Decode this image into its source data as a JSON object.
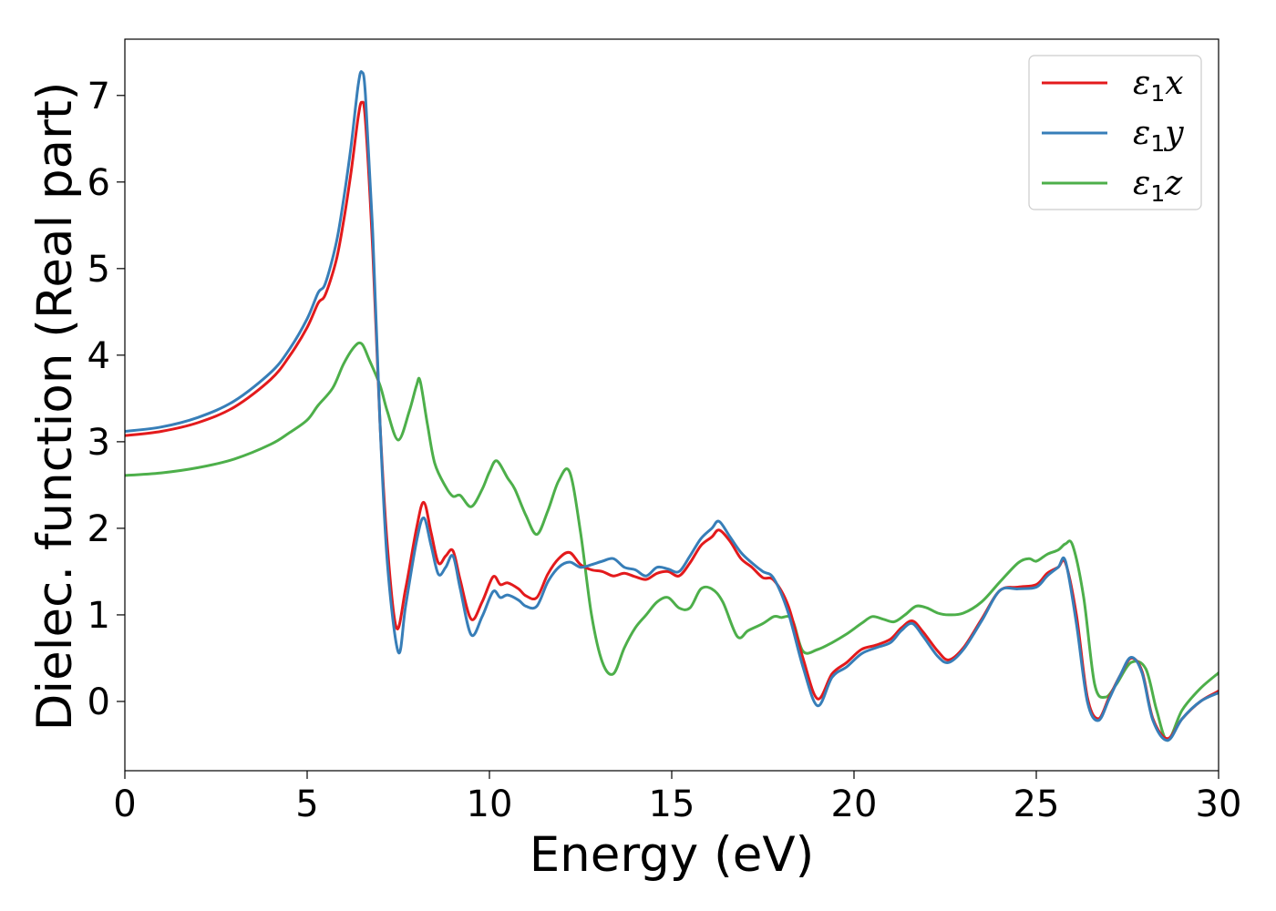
{
  "chart_data": {
    "type": "line",
    "title": "",
    "xlabel": "Energy (eV)",
    "ylabel": "Dielec. function (Real part)",
    "xlim": [
      0,
      30
    ],
    "ylim": [
      -0.8,
      7.65
    ],
    "xticks": [
      0,
      5,
      10,
      15,
      20,
      25,
      30
    ],
    "yticks": [
      0,
      1,
      2,
      3,
      4,
      5,
      6,
      7
    ],
    "xtick_labels": [
      "0",
      "5",
      "10",
      "15",
      "20",
      "25",
      "30"
    ],
    "ytick_labels": [
      "0",
      "1",
      "2",
      "3",
      "4",
      "5",
      "6",
      "7"
    ],
    "grid": false,
    "legend_position": "top-right",
    "series": [
      {
        "name": "ε1x",
        "legend_main": "ε",
        "legend_sub": "1",
        "legend_var": "x",
        "color": "#e31a1c",
        "x": [
          0,
          1,
          2,
          3,
          4,
          4.5,
          5,
          5.3,
          5.5,
          5.8,
          6.0,
          6.2,
          6.4,
          6.5,
          6.6,
          6.8,
          7.0,
          7.2,
          7.45,
          7.7,
          8.0,
          8.2,
          8.4,
          8.6,
          8.8,
          9.0,
          9.2,
          9.5,
          9.8,
          10.1,
          10.3,
          10.5,
          10.8,
          11.0,
          11.3,
          11.6,
          11.9,
          12.2,
          12.5,
          12.8,
          13.1,
          13.4,
          13.7,
          14.0,
          14.3,
          14.6,
          14.9,
          15.2,
          15.5,
          15.8,
          16.1,
          16.3,
          16.6,
          16.9,
          17.2,
          17.5,
          17.8,
          18.2,
          18.6,
          19.0,
          19.4,
          19.8,
          20.2,
          20.6,
          21.0,
          21.3,
          21.6,
          21.9,
          22.3,
          22.6,
          23.0,
          23.5,
          24.0,
          24.5,
          25.0,
          25.3,
          25.6,
          25.8,
          26.1,
          26.4,
          26.7,
          27.0,
          27.3,
          27.6,
          27.9,
          28.2,
          28.6,
          29.0,
          29.5,
          30.0
        ],
        "y": [
          3.07,
          3.12,
          3.22,
          3.4,
          3.72,
          3.98,
          4.32,
          4.6,
          4.7,
          5.1,
          5.55,
          6.1,
          6.75,
          6.92,
          6.7,
          5.2,
          3.2,
          1.8,
          0.85,
          1.3,
          2.0,
          2.3,
          1.95,
          1.6,
          1.68,
          1.74,
          1.4,
          0.95,
          1.15,
          1.44,
          1.35,
          1.37,
          1.3,
          1.22,
          1.2,
          1.47,
          1.65,
          1.72,
          1.58,
          1.52,
          1.5,
          1.45,
          1.48,
          1.44,
          1.41,
          1.48,
          1.5,
          1.45,
          1.6,
          1.8,
          1.9,
          1.98,
          1.85,
          1.65,
          1.55,
          1.43,
          1.4,
          1.1,
          0.5,
          0.03,
          0.32,
          0.45,
          0.6,
          0.65,
          0.72,
          0.85,
          0.93,
          0.8,
          0.58,
          0.48,
          0.62,
          0.95,
          1.28,
          1.32,
          1.35,
          1.48,
          1.55,
          1.6,
          1.0,
          0.05,
          -0.2,
          0.05,
          0.3,
          0.5,
          0.35,
          -0.2,
          -0.43,
          -0.2,
          0.0,
          0.12
        ]
      },
      {
        "name": "ε1y",
        "legend_main": "ε",
        "legend_sub": "1",
        "legend_var": "y",
        "color": "#377eb8",
        "x": [
          0,
          1,
          2,
          3,
          4,
          4.5,
          5,
          5.3,
          5.5,
          5.8,
          6.0,
          6.2,
          6.4,
          6.5,
          6.6,
          6.8,
          7.0,
          7.2,
          7.5,
          7.7,
          8.0,
          8.2,
          8.4,
          8.6,
          8.8,
          9.0,
          9.2,
          9.5,
          9.8,
          10.1,
          10.3,
          10.5,
          10.8,
          11.0,
          11.3,
          11.6,
          11.9,
          12.2,
          12.5,
          12.8,
          13.1,
          13.4,
          13.7,
          14.0,
          14.3,
          14.6,
          14.9,
          15.2,
          15.5,
          15.8,
          16.1,
          16.3,
          16.6,
          16.9,
          17.2,
          17.5,
          17.8,
          18.2,
          18.6,
          19.0,
          19.4,
          19.8,
          20.2,
          20.6,
          21.0,
          21.3,
          21.6,
          21.9,
          22.3,
          22.6,
          23.0,
          23.5,
          24.0,
          24.5,
          25.0,
          25.3,
          25.6,
          25.8,
          26.1,
          26.4,
          26.7,
          27.0,
          27.3,
          27.6,
          27.9,
          28.2,
          28.6,
          29.0,
          29.5,
          30.0
        ],
        "y": [
          3.12,
          3.17,
          3.28,
          3.47,
          3.8,
          4.06,
          4.42,
          4.72,
          4.83,
          5.3,
          5.8,
          6.4,
          7.12,
          7.27,
          7.0,
          5.4,
          3.2,
          1.6,
          0.57,
          1.1,
          1.85,
          2.12,
          1.8,
          1.47,
          1.55,
          1.68,
          1.3,
          0.77,
          0.98,
          1.27,
          1.2,
          1.23,
          1.17,
          1.1,
          1.1,
          1.38,
          1.55,
          1.61,
          1.55,
          1.58,
          1.62,
          1.65,
          1.55,
          1.52,
          1.45,
          1.55,
          1.53,
          1.5,
          1.68,
          1.88,
          2.0,
          2.08,
          1.9,
          1.72,
          1.6,
          1.5,
          1.42,
          1.02,
          0.4,
          -0.05,
          0.28,
          0.4,
          0.55,
          0.62,
          0.68,
          0.82,
          0.9,
          0.75,
          0.52,
          0.45,
          0.6,
          0.93,
          1.28,
          1.3,
          1.32,
          1.45,
          1.55,
          1.62,
          0.9,
          0.0,
          -0.22,
          0.03,
          0.3,
          0.51,
          0.33,
          -0.22,
          -0.45,
          -0.2,
          0.0,
          0.1
        ]
      },
      {
        "name": "ε1z",
        "legend_main": "ε",
        "legend_sub": "1",
        "legend_var": "z",
        "color": "#4daf4a",
        "x": [
          0,
          1,
          2,
          3,
          4,
          4.5,
          5,
          5.3,
          5.7,
          6.0,
          6.3,
          6.5,
          6.7,
          7.0,
          7.2,
          7.5,
          7.8,
          8.0,
          8.1,
          8.3,
          8.5,
          8.8,
          9.0,
          9.2,
          9.5,
          9.8,
          10.0,
          10.2,
          10.5,
          10.7,
          11.0,
          11.3,
          11.6,
          11.9,
          12.2,
          12.5,
          12.8,
          13.1,
          13.4,
          13.7,
          14.0,
          14.3,
          14.6,
          14.9,
          15.2,
          15.5,
          15.8,
          16.1,
          16.4,
          16.8,
          17.1,
          17.5,
          17.8,
          18.0,
          18.3,
          18.6,
          19.0,
          19.4,
          19.8,
          20.2,
          20.5,
          20.8,
          21.1,
          21.4,
          21.7,
          22.0,
          22.3,
          22.6,
          23.0,
          23.5,
          24.0,
          24.5,
          24.8,
          25.0,
          25.3,
          25.6,
          25.8,
          26.0,
          26.3,
          26.6,
          26.9,
          27.2,
          27.6,
          28.0,
          28.3,
          28.6,
          29.0,
          29.5,
          30.0
        ],
        "y": [
          2.61,
          2.64,
          2.7,
          2.8,
          2.97,
          3.1,
          3.25,
          3.42,
          3.62,
          3.9,
          4.1,
          4.13,
          3.95,
          3.65,
          3.35,
          3.02,
          3.35,
          3.65,
          3.7,
          3.2,
          2.75,
          2.48,
          2.37,
          2.38,
          2.25,
          2.45,
          2.65,
          2.78,
          2.58,
          2.45,
          2.15,
          1.93,
          2.2,
          2.55,
          2.65,
          1.95,
          1.0,
          0.45,
          0.32,
          0.62,
          0.85,
          1.0,
          1.15,
          1.2,
          1.08,
          1.08,
          1.3,
          1.3,
          1.15,
          0.75,
          0.82,
          0.9,
          0.98,
          0.97,
          0.95,
          0.58,
          0.6,
          0.68,
          0.78,
          0.9,
          0.98,
          0.95,
          0.92,
          1.0,
          1.1,
          1.08,
          1.02,
          1.0,
          1.02,
          1.15,
          1.38,
          1.6,
          1.65,
          1.62,
          1.7,
          1.75,
          1.82,
          1.8,
          1.2,
          0.2,
          0.05,
          0.2,
          0.45,
          0.38,
          -0.1,
          -0.45,
          -0.1,
          0.15,
          0.33
        ]
      }
    ]
  }
}
